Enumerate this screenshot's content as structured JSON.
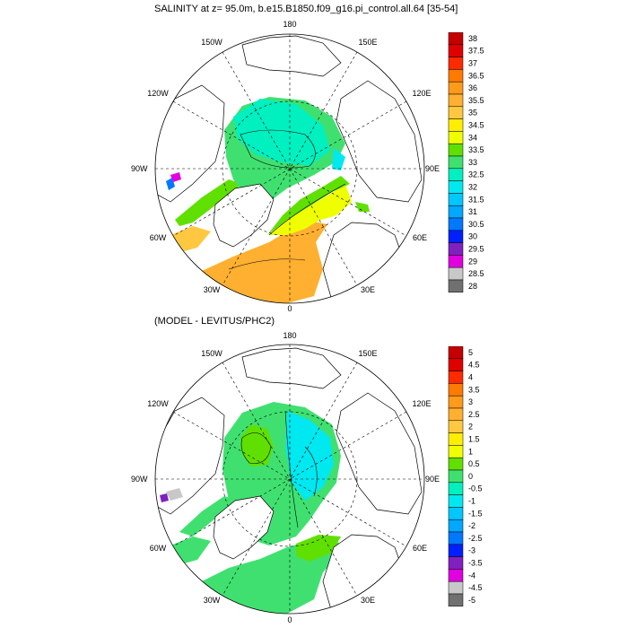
{
  "top_panel": {
    "title": "SALINITY at z=  95.0m, b.e15.B1850.f09_g16.pi_control.all.64 [35-54]",
    "lon_labels": {
      "n": "180",
      "ne": "150E",
      "e1": "120E",
      "e": "90E",
      "se1": "60E",
      "se": "30E",
      "s": "0",
      "sw": "30W",
      "w1": "60W",
      "w": "90W",
      "nw1": "120W",
      "nw": "150W"
    },
    "colorbar_labels": [
      "38",
      "37.5",
      "37",
      "36.5",
      "36",
      "35.5",
      "35",
      "34.5",
      "34",
      "33.5",
      "33",
      "32.5",
      "32",
      "31.5",
      "31",
      "30.5",
      "30",
      "29.5",
      "29",
      "28.5",
      "28"
    ]
  },
  "bottom_panel": {
    "title": "(MODEL - LEVITUS/PHC2)",
    "lon_labels": {
      "n": "180",
      "ne": "150E",
      "e1": "120E",
      "e": "90E",
      "se1": "60E",
      "se": "30E",
      "s": "0",
      "sw": "30W",
      "w1": "60W",
      "w": "90W",
      "nw1": "120W",
      "nw": "150W"
    },
    "colorbar_labels": [
      "5",
      "4.5",
      "4",
      "3.5",
      "3",
      "2.5",
      "2",
      "1.5",
      "1",
      "0.5",
      "0",
      "-0.5",
      "-1",
      "-1.5",
      "-2",
      "-2.5",
      "-3",
      "-3.5",
      "-4",
      "-4.5",
      "-5"
    ]
  },
  "colors": {
    "scale": [
      "#c40000",
      "#e00000",
      "#ff2a00",
      "#ff7a00",
      "#ff9a1a",
      "#ffb030",
      "#ffc840",
      "#ffee00",
      "#f0ff00",
      "#60e000",
      "#40e070",
      "#00f0c0",
      "#00e8f0",
      "#00c8ff",
      "#00a8ff",
      "#0078ff",
      "#0020ff",
      "#8020c0",
      "#e000e0",
      "#c8c8c8",
      "#707070"
    ]
  }
}
